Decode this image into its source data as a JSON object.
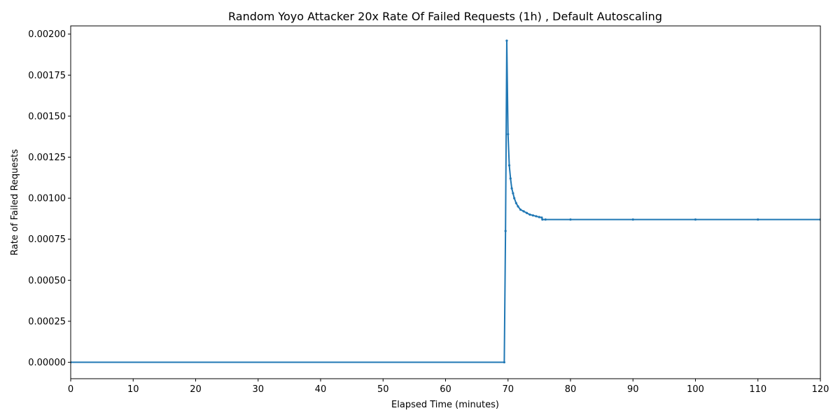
{
  "chart_data": {
    "type": "line",
    "title": "Random Yoyo Attacker 20x Rate Of Failed Requests (1h) , Default Autoscaling",
    "xlabel": "Elapsed Time (minutes)",
    "ylabel": "Rate of Failed Requests",
    "xlim": [
      0,
      120
    ],
    "ylim": [
      -0.0001,
      0.00205
    ],
    "grid": false,
    "color": "#1f77b4",
    "x_ticks": [
      0,
      10,
      20,
      30,
      40,
      50,
      60,
      70,
      80,
      90,
      100,
      110,
      120
    ],
    "x_tick_labels": [
      "0",
      "10",
      "20",
      "30",
      "40",
      "50",
      "60",
      "70",
      "80",
      "90",
      "100",
      "110",
      "120"
    ],
    "y_ticks": [
      0,
      0.00025,
      0.0005,
      0.00075,
      0.001,
      0.00125,
      0.0015,
      0.00175,
      0.002
    ],
    "y_tick_labels": [
      "0.00000",
      "0.00025",
      "0.00050",
      "0.00075",
      "0.00100",
      "0.00125",
      "0.00150",
      "0.00175",
      "0.00200"
    ],
    "series": [
      {
        "x": [
          0,
          69.4,
          69.6,
          69.8,
          70.0,
          70.2,
          70.4,
          70.6,
          70.8,
          71.0,
          71.3,
          71.6,
          72.0,
          72.5,
          73.0,
          73.5,
          74.0,
          74.5,
          75.0,
          75.4,
          75.5,
          76,
          80,
          90,
          100,
          110,
          120
        ],
        "y": [
          0,
          0,
          0.0008,
          0.00196,
          0.00139,
          0.0012,
          0.00112,
          0.00106,
          0.00103,
          0.001,
          0.00097,
          0.00095,
          0.00093,
          0.00092,
          0.00091,
          0.0009,
          0.000895,
          0.00089,
          0.000885,
          0.000882,
          0.00087,
          0.00087,
          0.00087,
          0.00087,
          0.00087,
          0.00087,
          0.00087
        ]
      }
    ]
  }
}
